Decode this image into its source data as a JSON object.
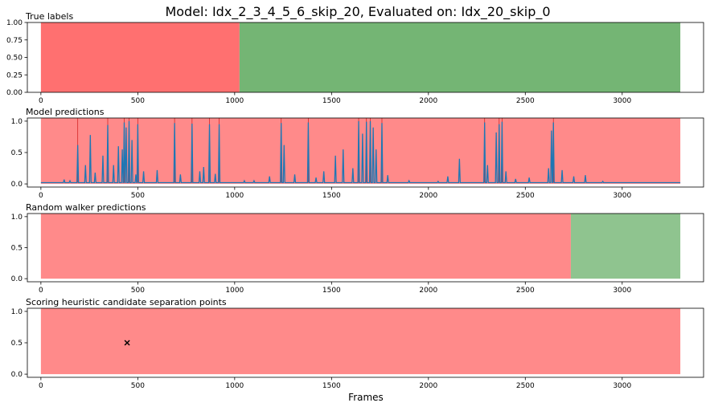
{
  "title": "Model: Idx_2_3_4_5_6_skip_20, Evaluated on: Idx_20_skip_0",
  "xlabel": "Frames",
  "colors": {
    "red_region": "#ff7070",
    "green_region": "#74b574",
    "red_region_light": "#ff8a8a",
    "green_region_light": "#8fc48f",
    "prediction_line": "#1f77b4",
    "spike_marker": "#d62728"
  },
  "chart_data": [
    {
      "type": "area",
      "title": "True labels",
      "xlim": [
        -70,
        3420
      ],
      "ylim": [
        0,
        1
      ],
      "xticks": [
        0,
        500,
        1000,
        1500,
        2000,
        2500,
        3000
      ],
      "yticks": [
        "0.00",
        "0.25",
        "0.50",
        "0.75",
        "1.00"
      ],
      "regions": [
        {
          "label": "red",
          "x_start": 0,
          "x_end": 1025,
          "y_top": 1.0
        },
        {
          "label": "green",
          "x_start": 1025,
          "x_end": 3300,
          "y_top": 1.0
        }
      ]
    },
    {
      "type": "line",
      "title": "Model predictions",
      "xlim": [
        -70,
        3420
      ],
      "ylim": [
        -0.05,
        1.05
      ],
      "xticks": [
        0,
        500,
        1000,
        1500,
        2000,
        2500,
        3000
      ],
      "yticks": [
        "0.0",
        "0.5",
        "1.0"
      ],
      "regions": [
        {
          "label": "red",
          "x_start": 0,
          "x_end": 3300,
          "y_top": 1.05
        }
      ],
      "baseline": 0.02,
      "peaks": [
        {
          "x": 120,
          "y": 0.07
        },
        {
          "x": 150,
          "y": 0.05
        },
        {
          "x": 190,
          "y": 0.62
        },
        {
          "x": 230,
          "y": 0.3
        },
        {
          "x": 255,
          "y": 0.78
        },
        {
          "x": 280,
          "y": 0.18
        },
        {
          "x": 320,
          "y": 0.45
        },
        {
          "x": 345,
          "y": 0.94
        },
        {
          "x": 375,
          "y": 0.3
        },
        {
          "x": 400,
          "y": 0.6
        },
        {
          "x": 420,
          "y": 0.55
        },
        {
          "x": 430,
          "y": 0.98
        },
        {
          "x": 440,
          "y": 0.9
        },
        {
          "x": 455,
          "y": 1.0
        },
        {
          "x": 470,
          "y": 0.7
        },
        {
          "x": 490,
          "y": 0.15
        },
        {
          "x": 500,
          "y": 0.95
        },
        {
          "x": 530,
          "y": 0.2
        },
        {
          "x": 600,
          "y": 0.22
        },
        {
          "x": 690,
          "y": 0.97
        },
        {
          "x": 720,
          "y": 0.15
        },
        {
          "x": 780,
          "y": 0.96
        },
        {
          "x": 820,
          "y": 0.2
        },
        {
          "x": 840,
          "y": 0.27
        },
        {
          "x": 870,
          "y": 0.95
        },
        {
          "x": 900,
          "y": 0.16
        },
        {
          "x": 920,
          "y": 0.95
        },
        {
          "x": 1050,
          "y": 0.05
        },
        {
          "x": 1100,
          "y": 0.05
        },
        {
          "x": 1180,
          "y": 0.12
        },
        {
          "x": 1240,
          "y": 0.97
        },
        {
          "x": 1255,
          "y": 0.62
        },
        {
          "x": 1310,
          "y": 0.15
        },
        {
          "x": 1380,
          "y": 0.98
        },
        {
          "x": 1420,
          "y": 0.1
        },
        {
          "x": 1460,
          "y": 0.2
        },
        {
          "x": 1520,
          "y": 0.45
        },
        {
          "x": 1560,
          "y": 0.55
        },
        {
          "x": 1610,
          "y": 0.25
        },
        {
          "x": 1640,
          "y": 1.0
        },
        {
          "x": 1660,
          "y": 0.8
        },
        {
          "x": 1680,
          "y": 0.99
        },
        {
          "x": 1700,
          "y": 1.0
        },
        {
          "x": 1715,
          "y": 0.9
        },
        {
          "x": 1730,
          "y": 0.55
        },
        {
          "x": 1760,
          "y": 0.97
        },
        {
          "x": 1790,
          "y": 0.14
        },
        {
          "x": 1900,
          "y": 0.05
        },
        {
          "x": 2050,
          "y": 0.04
        },
        {
          "x": 2100,
          "y": 0.12
        },
        {
          "x": 2160,
          "y": 0.4
        },
        {
          "x": 2290,
          "y": 0.98
        },
        {
          "x": 2305,
          "y": 0.3
        },
        {
          "x": 2350,
          "y": 0.82
        },
        {
          "x": 2365,
          "y": 0.95
        },
        {
          "x": 2380,
          "y": 0.99
        },
        {
          "x": 2400,
          "y": 0.2
        },
        {
          "x": 2450,
          "y": 0.08
        },
        {
          "x": 2520,
          "y": 0.1
        },
        {
          "x": 2620,
          "y": 0.25
        },
        {
          "x": 2635,
          "y": 0.85
        },
        {
          "x": 2645,
          "y": 0.98
        },
        {
          "x": 2690,
          "y": 0.22
        },
        {
          "x": 2750,
          "y": 0.12
        },
        {
          "x": 2810,
          "y": 0.14
        },
        {
          "x": 2900,
          "y": 0.04
        }
      ],
      "spike_markers_x": [
        190,
        345,
        430,
        455,
        500,
        690,
        780,
        870,
        920,
        1240,
        1380,
        1640,
        1680,
        1700,
        1760,
        2290,
        2365,
        2380,
        2645
      ]
    },
    {
      "type": "area",
      "title": "Random walker predictions",
      "xlim": [
        -70,
        3420
      ],
      "ylim": [
        -0.05,
        1.05
      ],
      "xticks": [
        0,
        500,
        1000,
        1500,
        2000,
        2500,
        3000
      ],
      "yticks": [
        "0.0",
        "0.5",
        "1.0"
      ],
      "regions": [
        {
          "label": "red",
          "x_start": 0,
          "x_end": 2735,
          "y_top": 1.05
        },
        {
          "label": "green",
          "x_start": 2735,
          "x_end": 3300,
          "y_top": 1.05
        }
      ]
    },
    {
      "type": "scatter",
      "title": "Scoring heuristic candidate separation points",
      "xlim": [
        -70,
        3420
      ],
      "ylim": [
        -0.05,
        1.05
      ],
      "xticks": [
        0,
        500,
        1000,
        1500,
        2000,
        2500,
        3000
      ],
      "yticks": [
        "0.0",
        "0.5",
        "1.0"
      ],
      "regions": [
        {
          "label": "red",
          "x_start": 0,
          "x_end": 3300,
          "y_top": 1.05
        }
      ],
      "points": [
        {
          "x": 445,
          "y": 0.5,
          "marker": "x"
        }
      ]
    }
  ]
}
